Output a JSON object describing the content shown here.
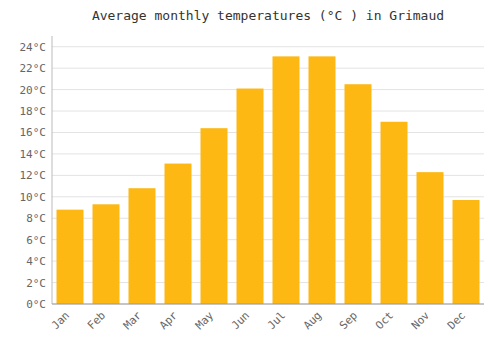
{
  "chart_data": {
    "type": "bar",
    "title": "Average monthly temperatures (°C ) in Grimaud",
    "categories": [
      "Jan",
      "Feb",
      "Mar",
      "Apr",
      "May",
      "Jun",
      "Jul",
      "Aug",
      "Sep",
      "Oct",
      "Nov",
      "Dec"
    ],
    "values": [
      8.8,
      9.3,
      10.8,
      13.1,
      16.4,
      20.1,
      23.1,
      23.1,
      20.5,
      17.0,
      12.3,
      9.7
    ],
    "color": "#FDB813",
    "ylim": [
      0,
      25
    ],
    "yticks": [
      {
        "value": 0,
        "label": "0°C"
      },
      {
        "value": 2,
        "label": "2°C"
      },
      {
        "value": 4,
        "label": "4°C"
      },
      {
        "value": 6,
        "label": "6°C"
      },
      {
        "value": 8,
        "label": "8°C"
      },
      {
        "value": 10,
        "label": "10°C"
      },
      {
        "value": 12,
        "label": "12°C"
      },
      {
        "value": 14,
        "label": "14°C"
      },
      {
        "value": 16,
        "label": "16°C"
      },
      {
        "value": 18,
        "label": "18°C"
      },
      {
        "value": 20,
        "label": "20°C"
      },
      {
        "value": 22,
        "label": "22°C"
      },
      {
        "value": 24,
        "label": "24°C"
      }
    ],
    "grid": true
  }
}
